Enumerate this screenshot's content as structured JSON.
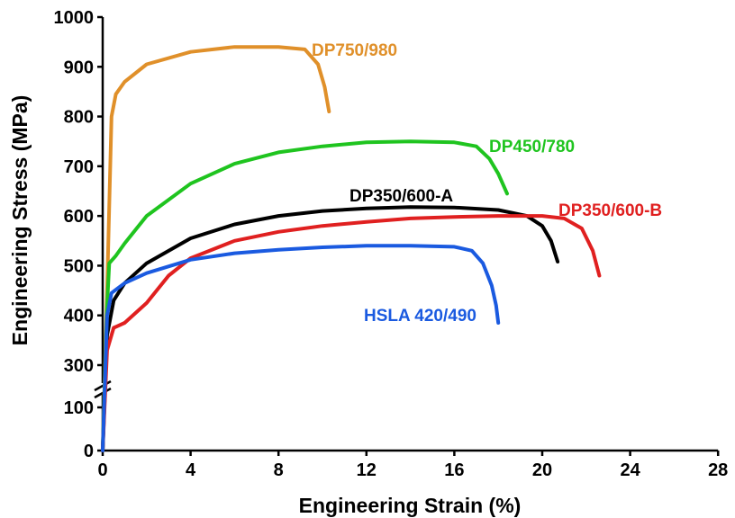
{
  "chart_data": {
    "type": "line",
    "title": "",
    "xlabel": "Engineering Strain (%)",
    "ylabel": "Engineering Stress (MPa)",
    "xlim": [
      0,
      28
    ],
    "x_ticks": [
      "0",
      "4",
      "8",
      "12",
      "16",
      "20",
      "24",
      "28"
    ],
    "y_ticks": [
      "0",
      "100",
      "300",
      "400",
      "500",
      "600",
      "700",
      "800",
      "900",
      "1000"
    ],
    "y_axis_break": [
      100,
      300
    ],
    "legend": "inline labels",
    "grid": false,
    "series": [
      {
        "name": "DP750/980",
        "color": "#E0902A",
        "points": [
          [
            0,
            0
          ],
          [
            0.2,
            450
          ],
          [
            0.4,
            800
          ],
          [
            0.6,
            845
          ],
          [
            1,
            870
          ],
          [
            2,
            905
          ],
          [
            4,
            930
          ],
          [
            6,
            940
          ],
          [
            8,
            940
          ],
          [
            9.2,
            935
          ],
          [
            9.8,
            905
          ],
          [
            10.1,
            860
          ],
          [
            10.3,
            810
          ]
        ]
      },
      {
        "name": "DP450/780",
        "color": "#1FC41F",
        "points": [
          [
            0,
            0
          ],
          [
            0.2,
            420
          ],
          [
            0.3,
            505
          ],
          [
            0.6,
            520
          ],
          [
            1,
            545
          ],
          [
            2,
            600
          ],
          [
            4,
            665
          ],
          [
            6,
            705
          ],
          [
            8,
            728
          ],
          [
            10,
            740
          ],
          [
            12,
            748
          ],
          [
            14,
            750
          ],
          [
            16,
            748
          ],
          [
            17,
            740
          ],
          [
            17.6,
            715
          ],
          [
            18,
            685
          ],
          [
            18.4,
            645
          ]
        ]
      },
      {
        "name": "DP350/600-A",
        "color": "#000000",
        "points": [
          [
            0,
            0
          ],
          [
            0.2,
            360
          ],
          [
            0.5,
            430
          ],
          [
            1,
            465
          ],
          [
            2,
            505
          ],
          [
            4,
            555
          ],
          [
            6,
            583
          ],
          [
            8,
            600
          ],
          [
            10,
            610
          ],
          [
            12,
            615
          ],
          [
            14,
            618
          ],
          [
            16,
            617
          ],
          [
            18,
            612
          ],
          [
            19.3,
            600
          ],
          [
            20,
            580
          ],
          [
            20.4,
            550
          ],
          [
            20.7,
            508
          ]
        ]
      },
      {
        "name": "DP350/600-B",
        "color": "#E02020",
        "points": [
          [
            0,
            0
          ],
          [
            0.2,
            330
          ],
          [
            0.5,
            375
          ],
          [
            1,
            385
          ],
          [
            2,
            425
          ],
          [
            3,
            480
          ],
          [
            4,
            515
          ],
          [
            6,
            550
          ],
          [
            8,
            568
          ],
          [
            10,
            580
          ],
          [
            12,
            588
          ],
          [
            14,
            595
          ],
          [
            16,
            598
          ],
          [
            18,
            600
          ],
          [
            20,
            600
          ],
          [
            21,
            595
          ],
          [
            21.8,
            575
          ],
          [
            22.3,
            530
          ],
          [
            22.6,
            480
          ]
        ]
      },
      {
        "name": "HSLA 420/490",
        "color": "#1A5AE0",
        "points": [
          [
            0,
            0
          ],
          [
            0.2,
            400
          ],
          [
            0.4,
            445
          ],
          [
            1,
            465
          ],
          [
            2,
            485
          ],
          [
            4,
            512
          ],
          [
            6,
            525
          ],
          [
            8,
            532
          ],
          [
            10,
            537
          ],
          [
            12,
            540
          ],
          [
            14,
            540
          ],
          [
            16,
            538
          ],
          [
            16.8,
            530
          ],
          [
            17.3,
            505
          ],
          [
            17.7,
            460
          ],
          [
            17.9,
            420
          ],
          [
            18,
            385
          ]
        ]
      }
    ]
  }
}
